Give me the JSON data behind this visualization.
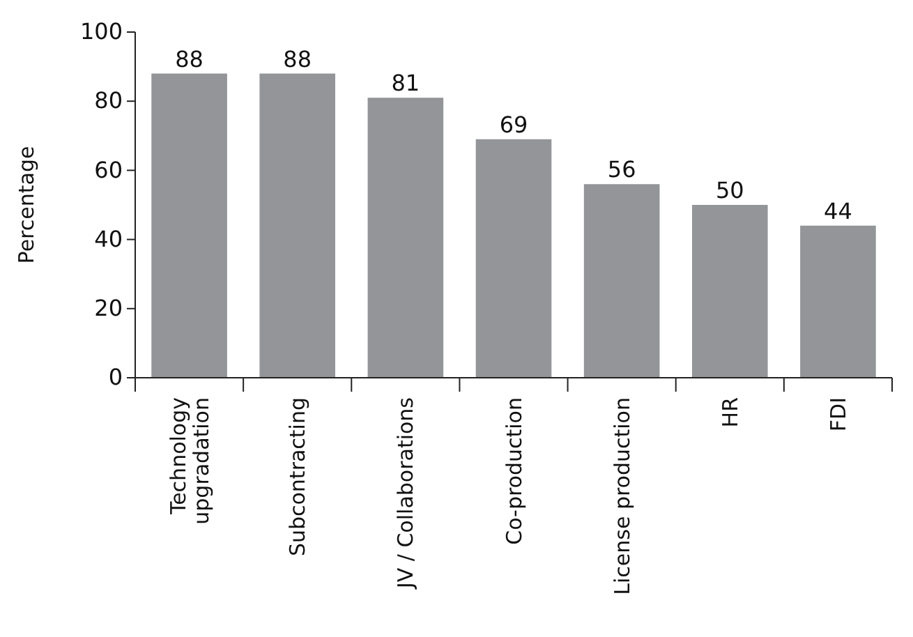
{
  "chart_data": {
    "type": "bar",
    "ylabel": "Percentage",
    "categories": [
      "Technology upgradation",
      "Subcontracting",
      "JV / Collaborations",
      "Co-production",
      "License production",
      "HR",
      "FDI"
    ],
    "values": [
      88,
      88,
      81,
      69,
      56,
      50,
      44
    ],
    "color": "#939598",
    "ylim": [
      0,
      100
    ],
    "yticks": [
      0,
      20,
      40,
      60,
      80,
      100
    ],
    "data_labels": true
  }
}
